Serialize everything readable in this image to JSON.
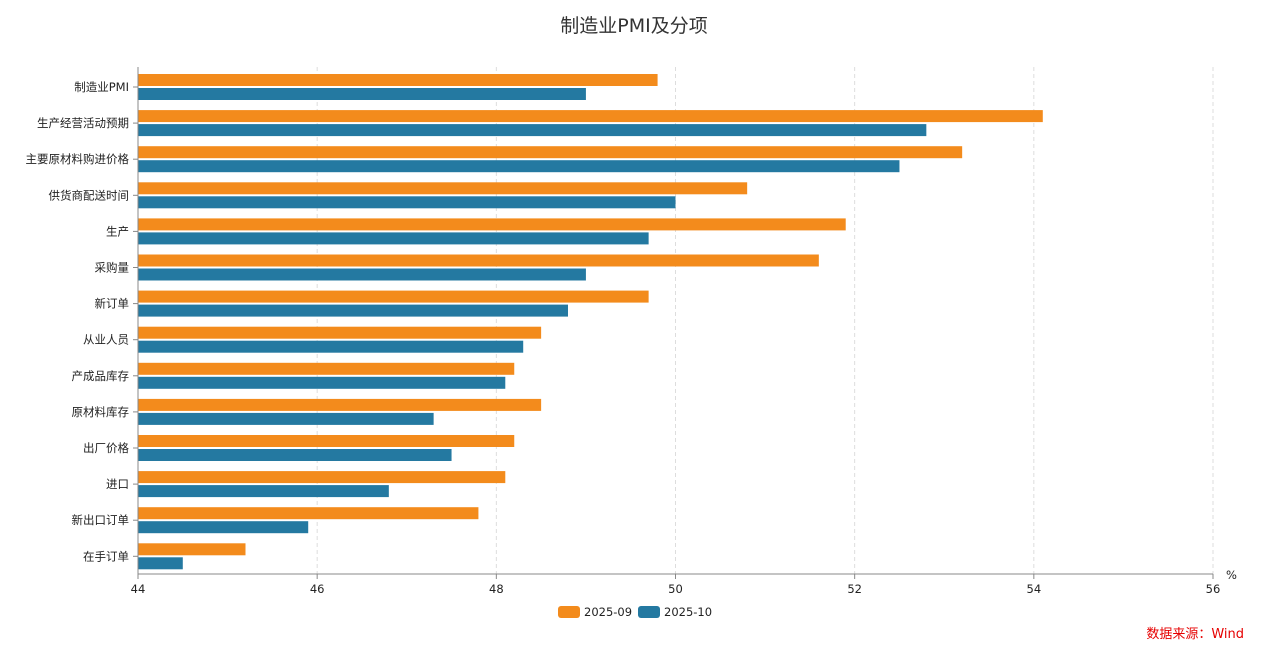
{
  "chart_data": {
    "type": "bar",
    "orientation": "horizontal",
    "title": "制造业PMI及分项",
    "unit": "%",
    "categories": [
      "制造业PMI",
      "生产经营活动预期",
      "主要原材料购进价格",
      "供货商配送时间",
      "生产",
      "采购量",
      "新订单",
      "从业人员",
      "产成品库存",
      "原材料库存",
      "出厂价格",
      "进口",
      "新出口订单",
      "在手订单"
    ],
    "series": [
      {
        "name": "2025-09",
        "color": "#f38b1c",
        "values": [
          49.8,
          54.1,
          53.2,
          50.8,
          51.9,
          51.6,
          49.7,
          48.5,
          48.2,
          48.5,
          48.2,
          48.1,
          47.8,
          45.2
        ]
      },
      {
        "name": "2025-10",
        "color": "#2479a1",
        "values": [
          49.0,
          52.8,
          52.5,
          50.0,
          49.7,
          49.0,
          48.8,
          48.3,
          48.1,
          47.3,
          47.5,
          46.8,
          45.9,
          44.5
        ]
      }
    ],
    "xlim": [
      44,
      56
    ],
    "xticks": [
      "44",
      "46",
      "48",
      "50",
      "52",
      "54",
      "56"
    ],
    "grid": "vertical dashed",
    "legend": "bottom-center"
  },
  "source": "数据来源：Wind"
}
